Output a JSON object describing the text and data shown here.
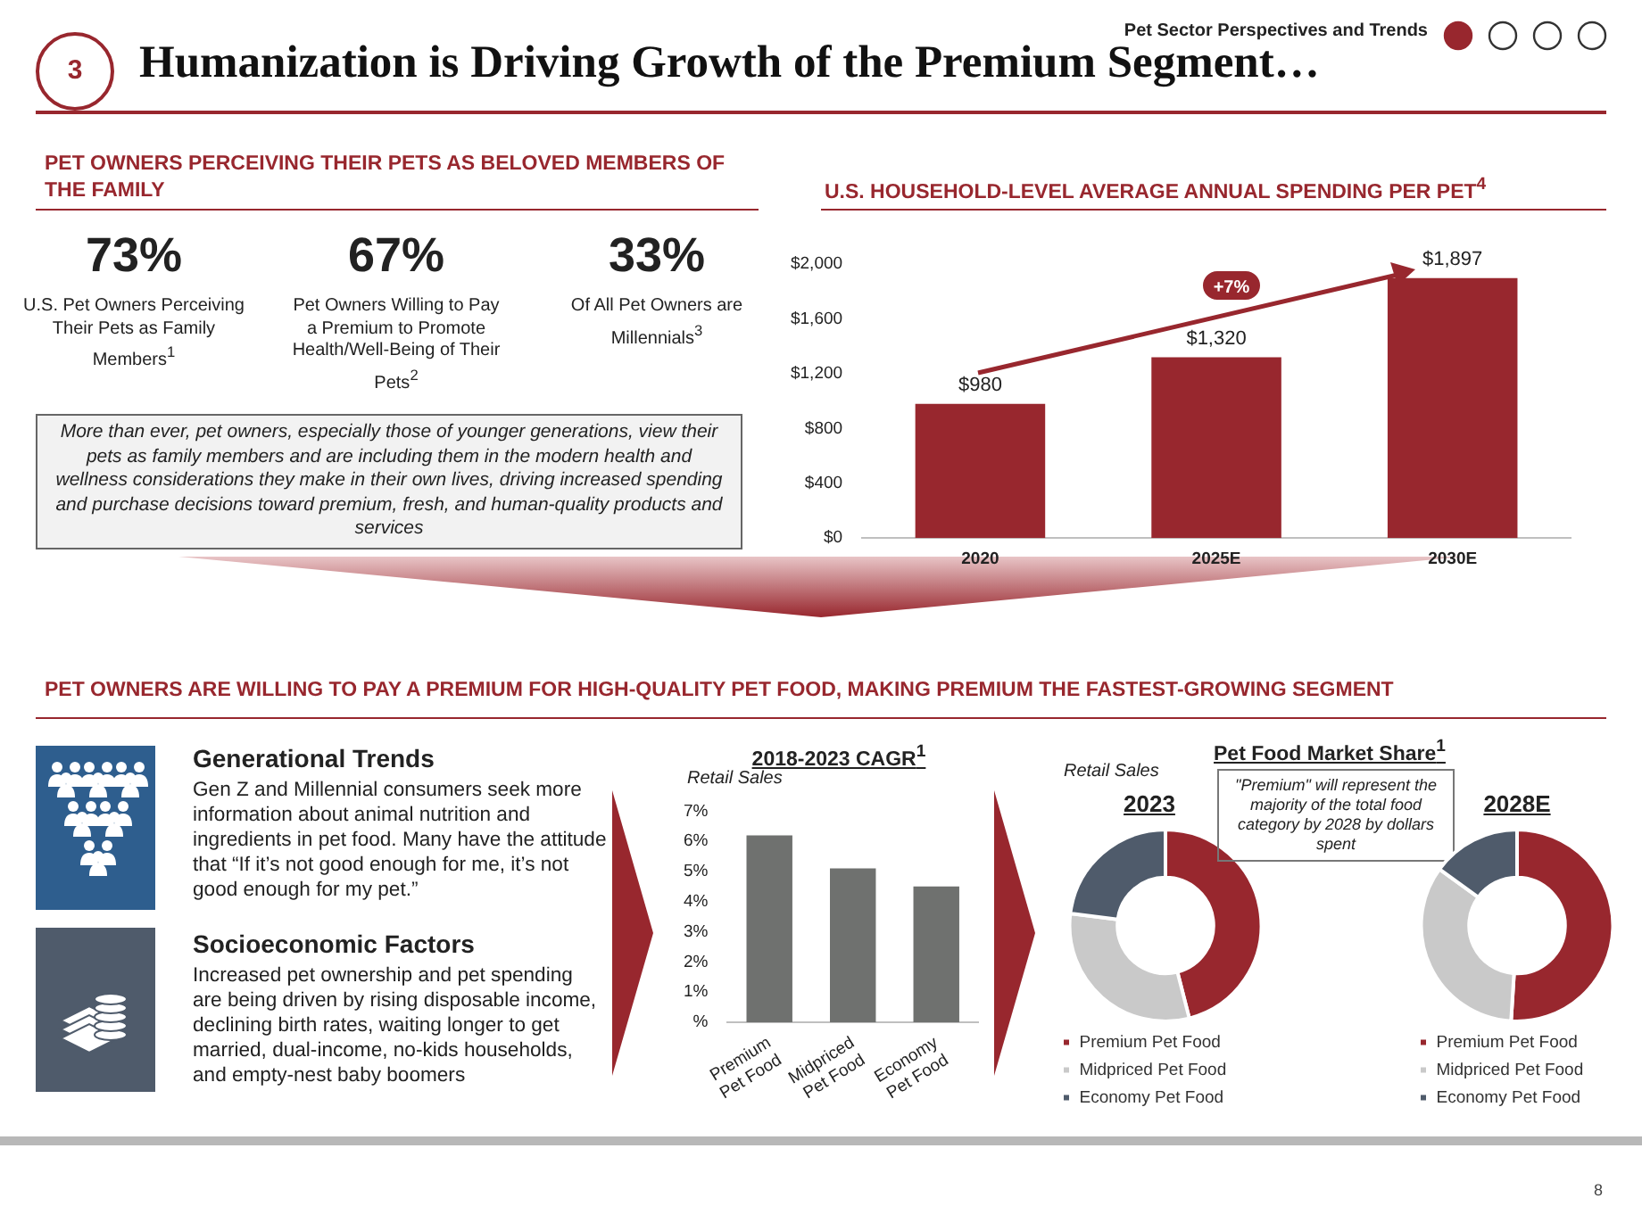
{
  "chart_data": [
    {
      "type": "other",
      "title": "Humanization is Driving Growth of the Premium Segment…",
      "annotations": [
        "3",
        "Pet Sector Perspectives and Trends",
        "PET OWNERS PERCEIVING THEIR PETS AS BELOVED MEMBERS OF THE FAMILY",
        "73%",
        "U.S. Pet Owners Perceiving Their Pets as Family Members$^{1}$",
        "67%",
        "Pet Owners Willing to Pay a Premium to Promote Health/Well-Being of Their Pets$^{2}$",
        "33%",
        "Of All Pet Owners are Millennials$^{3}$",
        "More than ever, pet owners, especially those of younger generations, view their pets as family members and are including them in the modern health and wellness considerations they make in their own lives, driving increased spending and purchase decisions toward premium, fresh, and human-quality products and services",
        "PET OWNERS ARE WILLING TO PAY A PREMIUM FOR HIGH-QUALITY PET FOOD, MAKING PREMIUM THE FASTEST-GROWING SEGMENT",
        "Generational Trends",
        "Gen Z and Millennial consumers seek more information about animal nutrition and ingredients in pet food. Many have the attitude that “If it’s not good enough for me, it’s not good enough for my pet.”",
        "Socioeconomic Factors",
        "Increased pet ownership and pet spending are being driven by rising disposable income, declining birth rates, waiting longer to get married, dual-income, no-kids households, and empty-nest baby boomers",
        "8"
      ]
    },
    {
      "type": "bar",
      "title": "U.S. HOUSEHOLD-LEVEL AVERAGE ANNUAL SPENDING PER PET$^{4}$",
      "categories": [
        "2020",
        "2025E",
        "2030E"
      ],
      "values": [
        980,
        1320,
        1897
      ],
      "color": "#98272e",
      "value_labels": [
        "$980",
        "$1,320",
        "$1,897"
      ],
      "ylim": [
        0,
        2000
      ],
      "yticks": [
        {
          "value": 0,
          "label": "$0"
        },
        {
          "value": 400,
          "label": "$400"
        },
        {
          "value": 800,
          "label": "$800"
        },
        {
          "value": 1200,
          "label": "$1,200"
        },
        {
          "value": 1600,
          "label": "$1,600"
        },
        {
          "value": 2000,
          "label": "$2,000"
        }
      ],
      "annotations": [
        "+7%"
      ]
    },
    {
      "type": "bar",
      "title": "2018-2023 CAGR$^{1}$",
      "subtitle": "Retail Sales",
      "categories": [
        "Premium Pet Food",
        "Midpriced Pet Food",
        "Economy Pet Food"
      ],
      "values": [
        6.2,
        5.1,
        4.5
      ],
      "color": "#6f716f",
      "ylim": [
        0,
        7
      ],
      "yticks": [
        {
          "value": 0,
          "label": "%"
        },
        {
          "value": 1,
          "label": "1%"
        },
        {
          "value": 2,
          "label": "2%"
        },
        {
          "value": 3,
          "label": "3%"
        },
        {
          "value": 4,
          "label": "4%"
        },
        {
          "value": 5,
          "label": "5%"
        },
        {
          "value": 6,
          "label": "6%"
        },
        {
          "value": 7,
          "label": "7%"
        }
      ]
    },
    {
      "type": "donut",
      "title": "2023",
      "categories": [
        "Premium Pet Food",
        "Midpriced Pet Food",
        "Economy Pet Food"
      ],
      "values": [
        46,
        31,
        23
      ],
      "colors": [
        "#98272e",
        "#c9c9c9",
        "#4f5b6b"
      ],
      "legend": "bottom",
      "annotations": [
        "Pet Food Market Share$^{1}$",
        "Retail Sales",
        "\"Premium\" will represent the majority of the total food category by 2028 by dollars spent"
      ]
    },
    {
      "type": "donut",
      "title": "2028E",
      "categories": [
        "Premium Pet Food",
        "Midpriced Pet Food",
        "Economy Pet Food"
      ],
      "values": [
        51,
        34,
        15
      ],
      "colors": [
        "#98272e",
        "#c9c9c9",
        "#4f5b6b"
      ],
      "legend": "bottom"
    }
  ]
}
